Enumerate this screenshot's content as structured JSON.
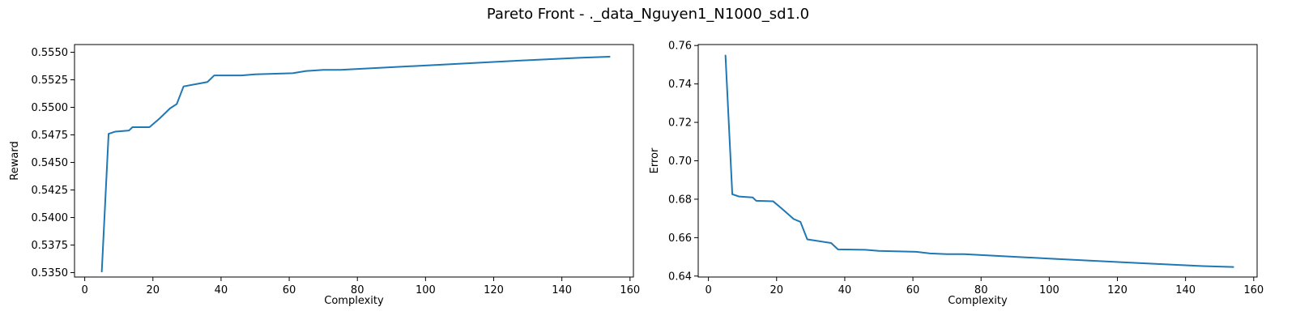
{
  "figure": {
    "suptitle": "Pareto Front - ._data_Nguyen1_N1000_sd1.0"
  },
  "chart_data": [
    {
      "type": "line",
      "title": "",
      "xlabel": "Complexity",
      "ylabel": "Reward",
      "xlim": [
        -3,
        161
      ],
      "ylim": [
        0.5346,
        0.5557
      ],
      "xticks": [
        0,
        20,
        40,
        60,
        80,
        100,
        120,
        140,
        160
      ],
      "yticks": [
        0.535,
        0.5375,
        0.54,
        0.5425,
        0.545,
        0.5475,
        0.55,
        0.5525,
        0.555
      ],
      "xtick_labels": [
        "0",
        "20",
        "40",
        "60",
        "80",
        "100",
        "120",
        "140",
        "160"
      ],
      "ytick_labels": [
        "0.5350",
        "0.5375",
        "0.5400",
        "0.5425",
        "0.5450",
        "0.5475",
        "0.5500",
        "0.5525",
        "0.5550"
      ],
      "grid": false,
      "color": "#1f77b4",
      "series": [
        {
          "x": [
            5,
            7,
            9,
            13,
            14,
            19,
            22,
            25,
            27,
            29,
            36,
            38,
            46,
            50,
            61,
            65,
            70,
            75,
            100,
            125,
            145,
            154
          ],
          "y": [
            0.5351,
            0.5476,
            0.5478,
            0.5479,
            0.5482,
            0.5482,
            0.549,
            0.5499,
            0.5503,
            0.5519,
            0.5523,
            0.5529,
            0.5529,
            0.553,
            0.5531,
            0.5533,
            0.5534,
            0.5534,
            0.5538,
            0.5542,
            0.5545,
            0.5546
          ]
        }
      ]
    },
    {
      "type": "line",
      "title": "",
      "xlabel": "Complexity",
      "ylabel": "Error",
      "xlim": [
        -3,
        161
      ],
      "ylim": [
        0.6395,
        0.7605
      ],
      "xticks": [
        0,
        20,
        40,
        60,
        80,
        100,
        120,
        140,
        160
      ],
      "yticks": [
        0.64,
        0.66,
        0.68,
        0.7,
        0.72,
        0.74,
        0.76
      ],
      "xtick_labels": [
        "0",
        "20",
        "40",
        "60",
        "80",
        "100",
        "120",
        "140",
        "160"
      ],
      "ytick_labels": [
        "0.64",
        "0.66",
        "0.68",
        "0.70",
        "0.72",
        "0.74",
        "0.76"
      ],
      "grid": false,
      "color": "#1f77b4",
      "series": [
        {
          "x": [
            5,
            7,
            9,
            13,
            14,
            19,
            22,
            25,
            27,
            29,
            36,
            38,
            46,
            50,
            61,
            65,
            70,
            75,
            100,
            125,
            145,
            154
          ],
          "y": [
            0.7548,
            0.6826,
            0.6814,
            0.6809,
            0.6792,
            0.6789,
            0.6744,
            0.6697,
            0.6682,
            0.6591,
            0.6572,
            0.6539,
            0.6537,
            0.6531,
            0.6526,
            0.6518,
            0.6514,
            0.6514,
            0.6491,
            0.6469,
            0.6452,
            0.6447
          ]
        }
      ]
    }
  ]
}
